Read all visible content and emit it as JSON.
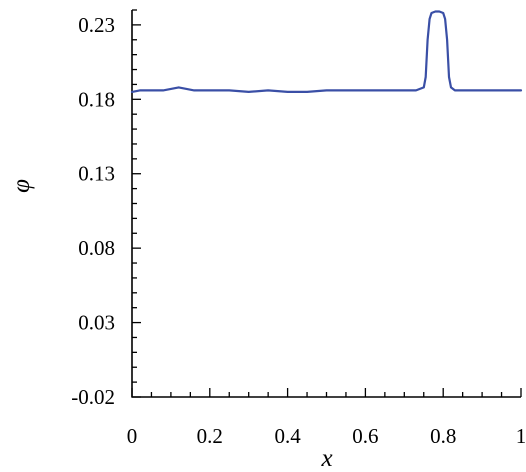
{
  "chart_data": {
    "type": "line",
    "title": "",
    "xlabel": "x",
    "ylabel": "φ",
    "xlim": [
      0,
      1
    ],
    "ylim": [
      -0.02,
      0.24
    ],
    "x_ticks": [
      0,
      0.2,
      0.4,
      0.6,
      0.8,
      1
    ],
    "x_tick_labels": [
      "0",
      "0.2",
      "0.4",
      "0.6",
      "0.8",
      "1"
    ],
    "y_ticks": [
      -0.02,
      0.03,
      0.08,
      0.13,
      0.18,
      0.23
    ],
    "y_tick_labels": [
      "-0.02",
      "0.03",
      "0.08",
      "0.13",
      "0.18",
      "0.23"
    ],
    "grid": false,
    "legend": false,
    "series": [
      {
        "color": "#3a4fa6",
        "x": [
          0,
          0.02,
          0.05,
          0.08,
          0.1,
          0.12,
          0.14,
          0.16,
          0.2,
          0.25,
          0.3,
          0.35,
          0.4,
          0.45,
          0.5,
          0.55,
          0.6,
          0.65,
          0.7,
          0.73,
          0.75,
          0.755,
          0.76,
          0.765,
          0.77,
          0.78,
          0.79,
          0.8,
          0.805,
          0.81,
          0.815,
          0.82,
          0.83,
          0.85,
          0.9,
          0.95,
          1.0
        ],
        "y": [
          0.185,
          0.186,
          0.186,
          0.186,
          0.187,
          0.188,
          0.187,
          0.186,
          0.186,
          0.186,
          0.185,
          0.186,
          0.185,
          0.185,
          0.186,
          0.186,
          0.186,
          0.186,
          0.186,
          0.186,
          0.188,
          0.195,
          0.22,
          0.234,
          0.238,
          0.239,
          0.239,
          0.238,
          0.234,
          0.22,
          0.195,
          0.188,
          0.186,
          0.186,
          0.186,
          0.186,
          0.186
        ]
      }
    ]
  }
}
